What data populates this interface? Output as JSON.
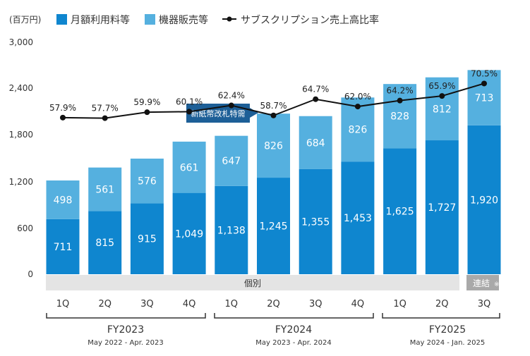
{
  "chart_data": {
    "type": "bar",
    "stacked": true,
    "unit_label": "(百万円)",
    "categories": [
      "1Q",
      "2Q",
      "3Q",
      "4Q",
      "1Q",
      "2Q",
      "3Q",
      "4Q",
      "1Q",
      "2Q",
      "3Q"
    ],
    "series": [
      {
        "name": "月額利用料等",
        "color": "#0f86cf",
        "values": [
          711,
          815,
          915,
          1049,
          1138,
          1245,
          1355,
          1453,
          1625,
          1727,
          1920
        ]
      },
      {
        "name": "機器販売等",
        "color": "#55b0df",
        "values": [
          498,
          561,
          576,
          661,
          647,
          826,
          684,
          826,
          828,
          812,
          713
        ]
      }
    ],
    "line_series": {
      "name": "サブスクリプション売上高比率",
      "color": "#111111",
      "values": [
        57.9,
        57.7,
        59.9,
        60.1,
        62.4,
        58.7,
        64.7,
        62.0,
        64.2,
        65.9,
        70.5
      ],
      "labels": [
        "57.9%",
        "57.7%",
        "59.9%",
        "60.1%",
        "62.4%",
        "58.7%",
        "64.7%",
        "62.0%",
        "64.2%",
        "65.9%",
        "70.5%"
      ]
    },
    "y_ticks": [
      "3,000",
      "2,400",
      "1,800",
      "1,200",
      "600",
      "0"
    ],
    "ylim": [
      0,
      3000
    ],
    "grid": false,
    "legend_position": "top-left",
    "annotation": "新紙幣改札特需",
    "band_labels": {
      "individual": "個別",
      "consolidated": "連結",
      "consolidated_mark": "※"
    },
    "fiscal_years": [
      {
        "label": "FY2023",
        "period": "May 2022 - Apr. 2023"
      },
      {
        "label": "FY2024",
        "period": "May 2023 - Apr. 2024"
      },
      {
        "label": "FY2025",
        "period": "May 2024  - Jan. 2025"
      }
    ]
  }
}
